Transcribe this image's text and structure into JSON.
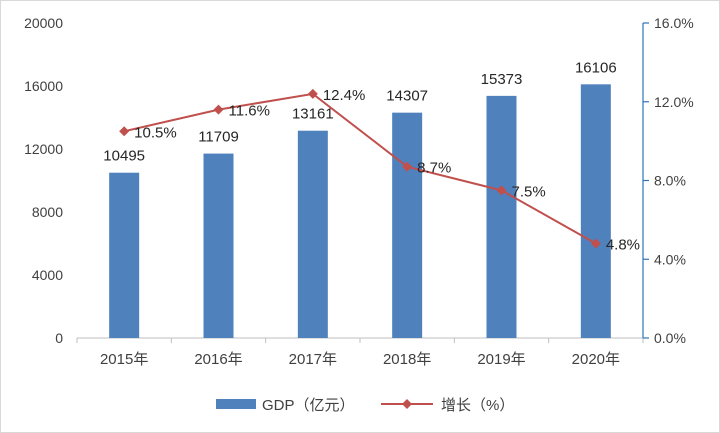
{
  "chart_data": {
    "type": "bar",
    "categories": [
      "2015年",
      "2016年",
      "2017年",
      "2018年",
      "2019年",
      "2020年"
    ],
    "series": [
      {
        "name": "GDP（亿元）",
        "type": "bar",
        "axis": "left",
        "values": [
          10495,
          11709,
          13161,
          14307,
          15373,
          16106
        ],
        "labels": [
          "10495",
          "11709",
          "13161",
          "14307",
          "15373",
          "16106"
        ],
        "color": "#4f81bd"
      },
      {
        "name": "增长（%）",
        "type": "line",
        "axis": "right",
        "values": [
          10.5,
          11.6,
          12.4,
          8.7,
          7.5,
          4.8
        ],
        "labels": [
          "10.5%",
          "11.6%",
          "12.4%",
          "8.7%",
          "7.5%",
          "4.8%"
        ],
        "color": "#c0504d"
      }
    ],
    "y_left": {
      "lim": [
        0,
        20000
      ],
      "ticks": [
        0,
        4000,
        8000,
        12000,
        16000,
        20000
      ],
      "tick_labels": [
        "0",
        "4000",
        "8000",
        "12000",
        "16000",
        "20000"
      ]
    },
    "y_right": {
      "lim": [
        0,
        16
      ],
      "ticks": [
        0,
        4,
        8,
        12,
        16
      ],
      "tick_labels": [
        "0.0%",
        "4.0%",
        "8.0%",
        "12.0%",
        "16.0%"
      ],
      "color": "#2e75b6"
    },
    "title": "",
    "xlabel": "",
    "ylabel": "",
    "grid": false,
    "legend": "bottom"
  }
}
